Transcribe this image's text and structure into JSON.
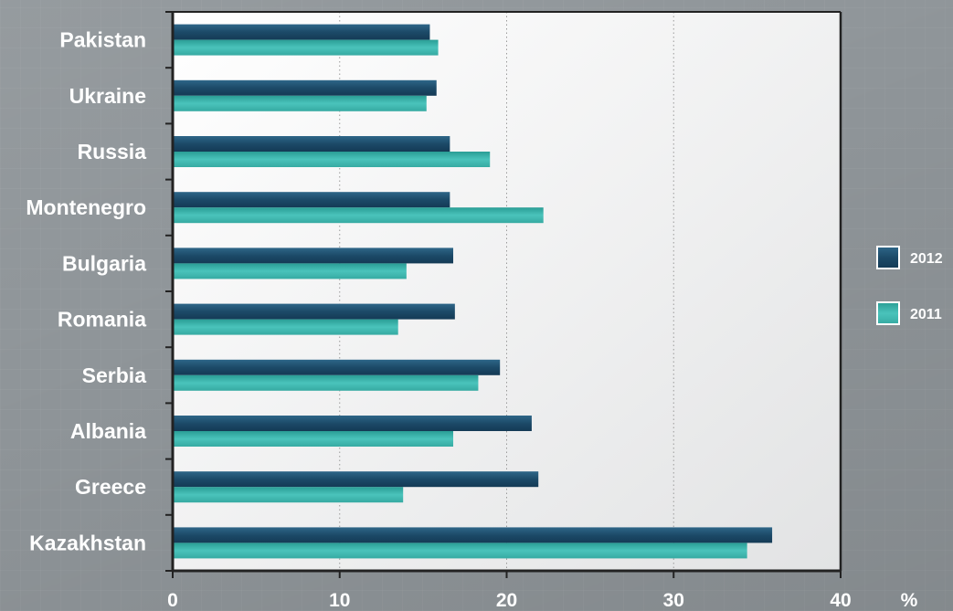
{
  "chart_data": {
    "type": "bar",
    "orientation": "horizontal",
    "categories": [
      "Pakistan",
      "Ukraine",
      "Russia",
      "Montenegro",
      "Bulgaria",
      "Romania",
      "Serbia",
      "Albania",
      "Greece",
      "Kazakhstan"
    ],
    "series": [
      {
        "name": "2012",
        "color": "#1c4a68",
        "values": [
          15.4,
          15.8,
          16.6,
          16.6,
          16.8,
          16.9,
          19.6,
          21.5,
          21.9,
          35.9
        ]
      },
      {
        "name": "2011",
        "color": "#3fb5ad",
        "values": [
          15.9,
          15.2,
          19.0,
          22.2,
          14.0,
          13.5,
          18.3,
          16.8,
          13.8,
          34.4
        ]
      }
    ],
    "x_ticks": [
      "0",
      "10",
      "20",
      "30",
      "40"
    ],
    "xlim": [
      0,
      40
    ],
    "x_unit": "%",
    "title": "",
    "xlabel": "",
    "ylabel": "",
    "grid": "vertical dotted",
    "legend_position": "right"
  }
}
